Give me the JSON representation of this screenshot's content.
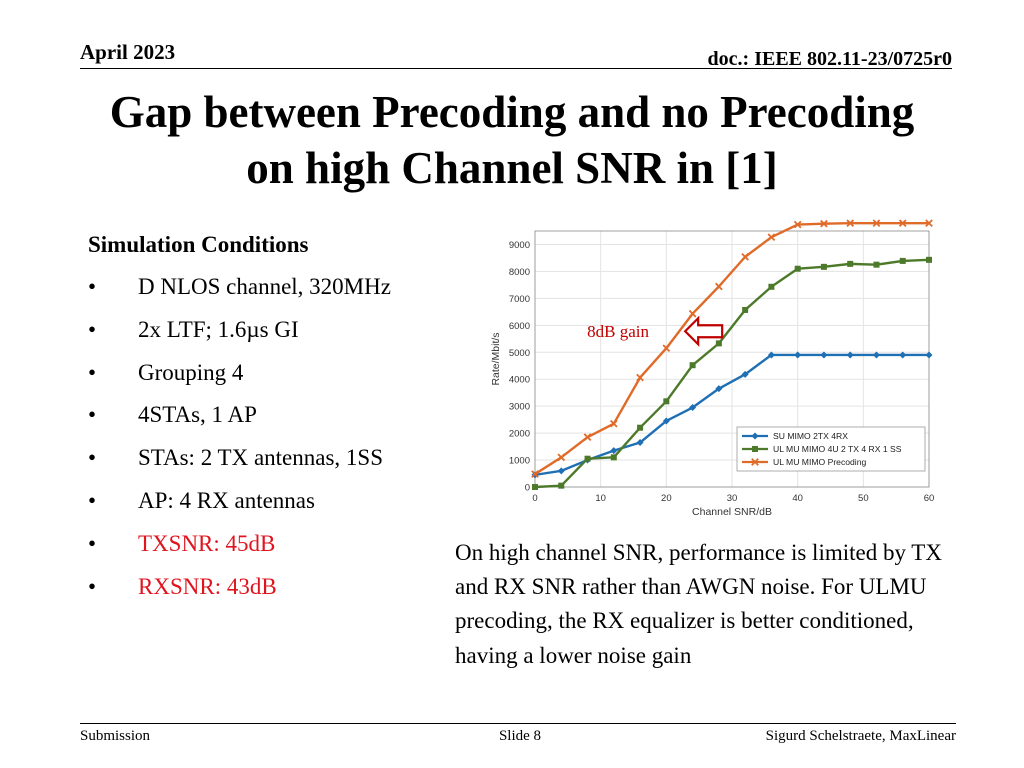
{
  "header": {
    "date": "April 2023",
    "doc": "doc.: IEEE 802.11-23/0725r0"
  },
  "title": {
    "line1": "Gap between Precoding and no Precoding",
    "line2": "on high Channel SNR in [1]"
  },
  "conditions": {
    "heading": "Simulation Conditions",
    "bullet": "•",
    "items": [
      {
        "text": "D NLOS channel, 320MHz",
        "highlight": false
      },
      {
        "text": "2x LTF; 1.6µs GI",
        "highlight": false
      },
      {
        "text": "Grouping 4",
        "highlight": false
      },
      {
        "text": "4STAs, 1 AP",
        "highlight": false
      },
      {
        "text": "STAs: 2 TX antennas, 1SS",
        "highlight": false
      },
      {
        "text": "AP: 4 RX antennas",
        "highlight": false
      },
      {
        "text": "TXSNR: 45dB",
        "highlight": true
      },
      {
        "text": "RXSNR: 43dB",
        "highlight": true
      }
    ],
    "highlight_color": "#e0141e"
  },
  "note": "On high channel SNR, performance is limited by TX and RX SNR rather than AWGN noise. For ULMU precoding, the RX equalizer is better conditioned, having a lower noise gain",
  "footer": {
    "left": "Submission",
    "center": "Slide 8",
    "right": "Sigurd Schelstraete, MaxLinear"
  },
  "chart_data": {
    "type": "line",
    "title": "",
    "xlabel": "Channel SNR/dB",
    "ylabel": "Rate/Mbit/s",
    "xlim": [
      0,
      60
    ],
    "ylim": [
      0,
      9500
    ],
    "xticks": [
      0,
      10,
      20,
      30,
      40,
      50,
      60
    ],
    "yticks": [
      0,
      1000,
      2000,
      3000,
      4000,
      5000,
      6000,
      7000,
      8000,
      9000
    ],
    "grid": true,
    "legend_position": "lower-right",
    "x": [
      0,
      4,
      8,
      12,
      16,
      20,
      24,
      28,
      32,
      36,
      40,
      44,
      48,
      52,
      56,
      60
    ],
    "series": [
      {
        "name": "SU MIMO 2TX 4RX",
        "color": "#1f6fb4",
        "marker": "diamond",
        "values": [
          450,
          600,
          1000,
          1350,
          1650,
          2450,
          2950,
          3650,
          4180,
          4900,
          4900,
          4900,
          4900,
          4900,
          4900,
          4900
        ]
      },
      {
        "name": "UL MU MIMO 4U 2 TX 4 RX 1 SS",
        "color": "#4d7a2a",
        "marker": "square",
        "values": [
          0,
          50,
          1050,
          1100,
          2200,
          3180,
          4520,
          5330,
          6570,
          7430,
          8100,
          8170,
          8280,
          8250,
          8390,
          8430
        ]
      },
      {
        "name": "UL MU MIMO Precoding",
        "color": "#e06a28",
        "marker": "x",
        "values": [
          480,
          1100,
          1850,
          2350,
          4060,
          5150,
          6430,
          7440,
          8540,
          9270,
          9740,
          9770,
          9790,
          9790,
          9790,
          9790
        ]
      }
    ],
    "annotation": {
      "text": "8dB gain",
      "color": "#c00000",
      "at": {
        "x": 25,
        "y": 5780
      }
    }
  }
}
